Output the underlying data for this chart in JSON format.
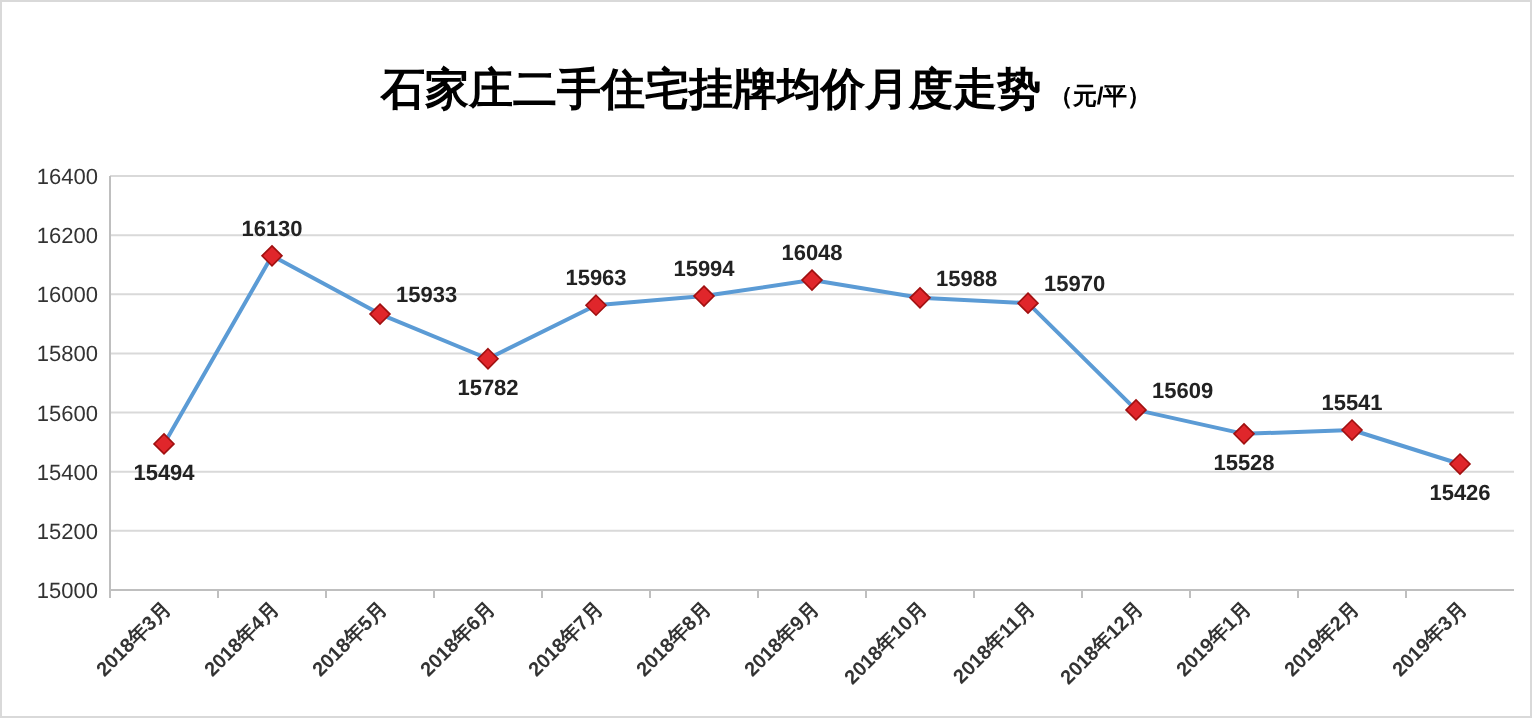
{
  "chart_data": {
    "type": "line",
    "title": "石家庄二手住宅挂牌均价月度走势",
    "subtitle": "（元/平）",
    "categories": [
      "2018年3月",
      "2018年4月",
      "2018年5月",
      "2018年6月",
      "2018年7月",
      "2018年8月",
      "2018年9月",
      "2018年10月",
      "2018年11月",
      "2018年12月",
      "2019年1月",
      "2019年2月",
      "2019年3月"
    ],
    "series": [
      {
        "color": "#5b9bd5",
        "colors": [
          "#e0262b",
          "#e0262b",
          "#e0262b",
          "#e0262b",
          "#e0262b",
          "#e0262b",
          "#e0262b",
          "#e0262b",
          "#e0262b",
          "#e0262b",
          "#e0262b",
          "#e0262b",
          "#e0262b"
        ],
        "values": [
          15494,
          16130,
          15933,
          15782,
          15963,
          15994,
          16048,
          15988,
          15970,
          15609,
          15528,
          15541,
          15426
        ]
      }
    ],
    "marker": "diamond",
    "ylim": [
      15000,
      16400
    ],
    "yticks": [
      15000,
      15200,
      15400,
      15600,
      15800,
      16000,
      16200,
      16400
    ],
    "grid": "y",
    "data_labels": true
  }
}
